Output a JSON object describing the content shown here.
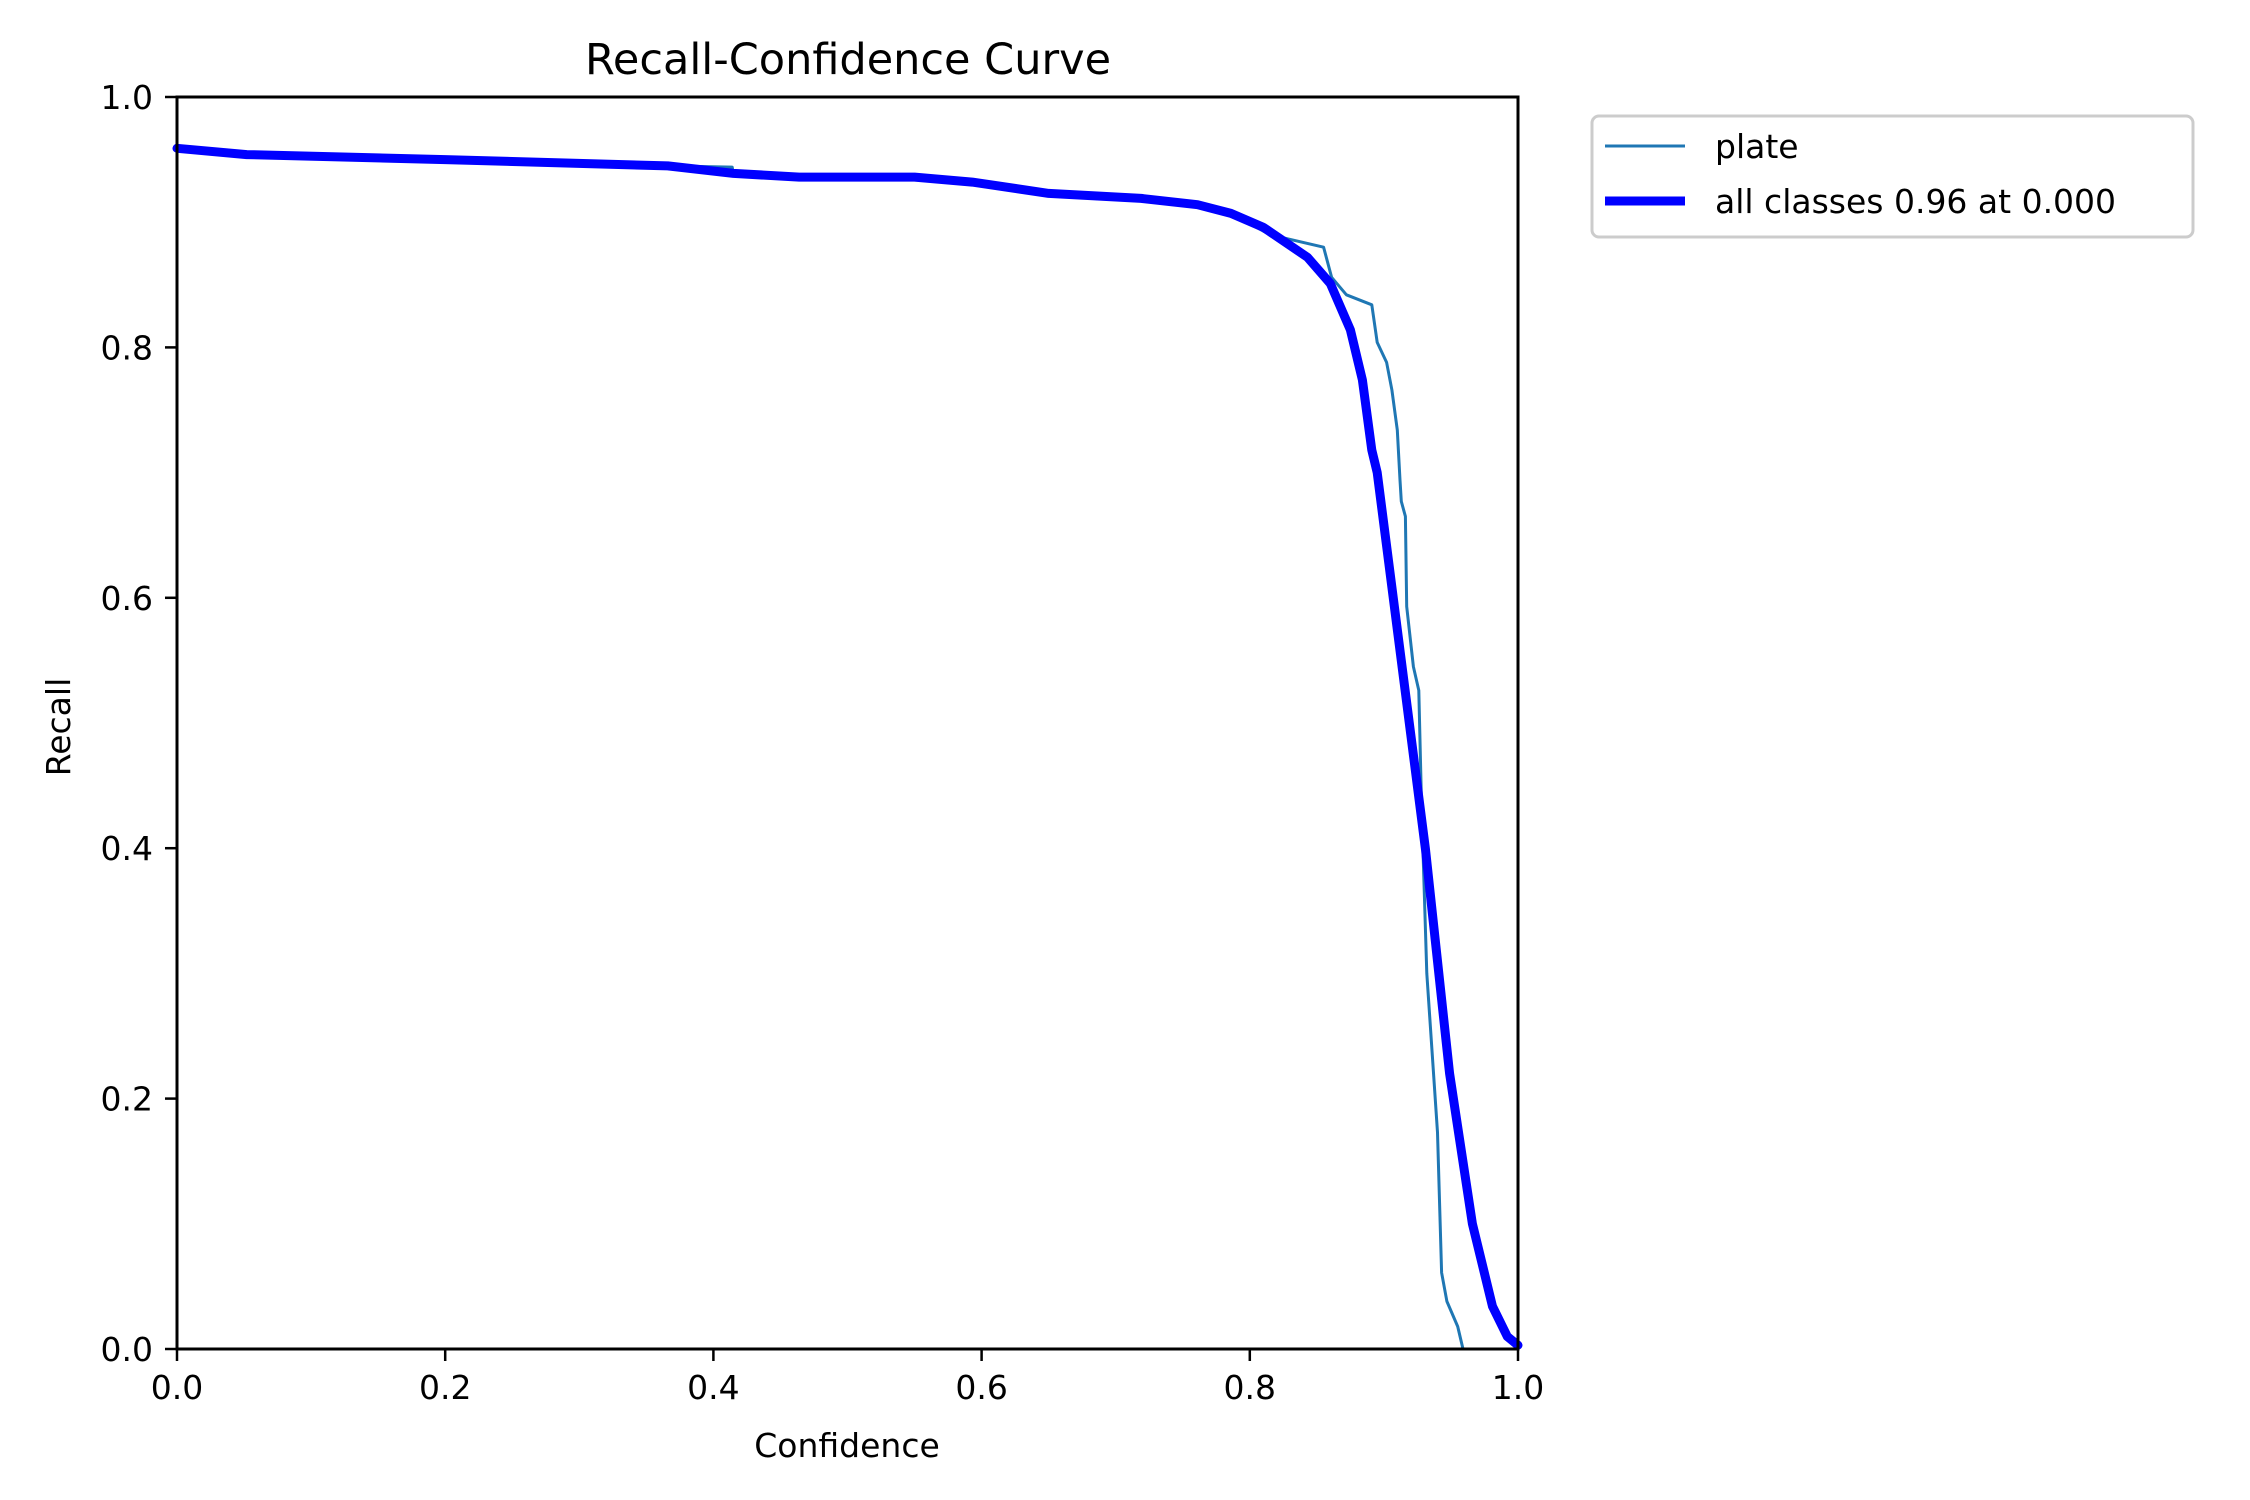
{
  "chart_data": {
    "type": "line",
    "title": "Recall-Confidence Curve",
    "xlabel": "Confidence",
    "ylabel": "Recall",
    "xlim": [
      0.0,
      1.0
    ],
    "ylim": [
      0.0,
      1.0
    ],
    "x_ticks": [
      "0.0",
      "0.2",
      "0.4",
      "0.6",
      "0.8",
      "1.0"
    ],
    "y_ticks": [
      "0.0",
      "0.2",
      "0.4",
      "0.6",
      "0.8",
      "1.0"
    ],
    "grid": false,
    "legend_position": "outside upper right",
    "series": [
      {
        "name": "plate",
        "color": "#1f77b4",
        "line_width": 3,
        "points": [
          [
            0.0,
            0.958
          ],
          [
            0.052,
            0.954
          ],
          [
            0.2,
            0.95
          ],
          [
            0.366,
            0.945
          ],
          [
            0.414,
            0.944
          ],
          [
            0.415,
            0.937
          ],
          [
            0.464,
            0.936
          ],
          [
            0.55,
            0.936
          ],
          [
            0.593,
            0.933
          ],
          [
            0.65,
            0.923
          ],
          [
            0.719,
            0.919
          ],
          [
            0.761,
            0.914
          ],
          [
            0.786,
            0.907
          ],
          [
            0.815,
            0.89
          ],
          [
            0.855,
            0.88
          ],
          [
            0.861,
            0.856
          ],
          [
            0.872,
            0.842
          ],
          [
            0.891,
            0.834
          ],
          [
            0.895,
            0.804
          ],
          [
            0.902,
            0.788
          ],
          [
            0.906,
            0.766
          ],
          [
            0.91,
            0.734
          ],
          [
            0.912,
            0.694
          ],
          [
            0.913,
            0.677
          ],
          [
            0.916,
            0.665
          ],
          [
            0.917,
            0.593
          ],
          [
            0.922,
            0.545
          ],
          [
            0.926,
            0.526
          ],
          [
            0.928,
            0.439
          ],
          [
            0.932,
            0.3
          ],
          [
            0.94,
            0.173
          ],
          [
            0.943,
            0.061
          ],
          [
            0.947,
            0.038
          ],
          [
            0.955,
            0.018
          ],
          [
            0.959,
            0.0
          ],
          [
            1.0,
            0.0
          ]
        ]
      },
      {
        "name": "all classes 0.96 at 0.000",
        "color": "#0000ff",
        "line_width": 9,
        "points": [
          [
            0.0,
            0.959
          ],
          [
            0.052,
            0.954
          ],
          [
            0.2,
            0.95
          ],
          [
            0.366,
            0.945
          ],
          [
            0.415,
            0.939
          ],
          [
            0.464,
            0.936
          ],
          [
            0.55,
            0.936
          ],
          [
            0.593,
            0.932
          ],
          [
            0.65,
            0.923
          ],
          [
            0.719,
            0.919
          ],
          [
            0.761,
            0.914
          ],
          [
            0.786,
            0.907
          ],
          [
            0.81,
            0.896
          ],
          [
            0.843,
            0.872
          ],
          [
            0.86,
            0.851
          ],
          [
            0.871,
            0.824
          ],
          [
            0.875,
            0.814
          ],
          [
            0.884,
            0.774
          ],
          [
            0.891,
            0.718
          ],
          [
            0.895,
            0.7
          ],
          [
            0.931,
            0.399
          ],
          [
            0.949,
            0.22
          ],
          [
            0.966,
            0.1
          ],
          [
            0.981,
            0.034
          ],
          [
            0.992,
            0.01
          ],
          [
            1.0,
            0.003
          ]
        ]
      }
    ]
  },
  "legend": {
    "items": [
      {
        "label": "plate",
        "color": "#1f77b4"
      },
      {
        "label": "all classes 0.96 at 0.000",
        "color": "#0000ff"
      }
    ]
  }
}
